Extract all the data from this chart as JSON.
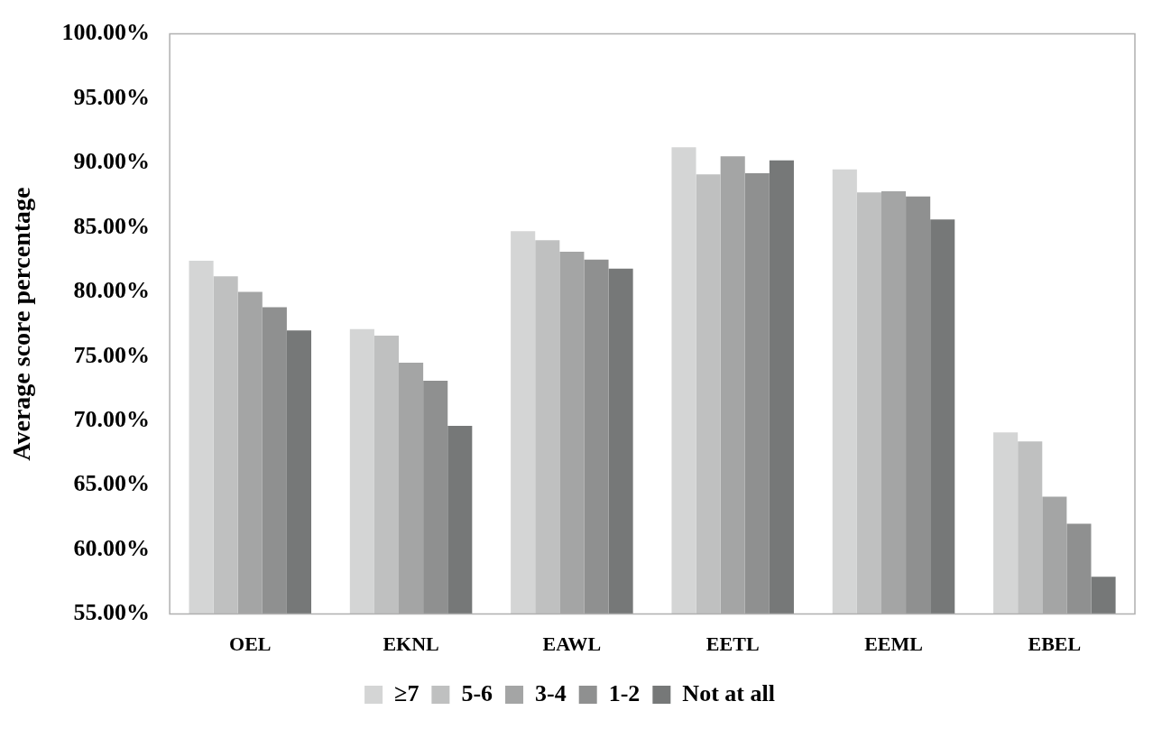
{
  "chart_data": {
    "type": "bar",
    "ylabel": "Average score percentage",
    "categories": [
      "OEL",
      "EKNL",
      "EAWL",
      "EETL",
      "EEML",
      "EBEL"
    ],
    "series": [
      {
        "name": "≥7",
        "color": "#d4d5d5",
        "values": [
          82.4,
          77.1,
          84.7,
          91.2,
          89.5,
          69.1
        ]
      },
      {
        "name": "5-6",
        "color": "#bfc0c0",
        "values": [
          81.2,
          76.6,
          84.0,
          89.1,
          87.7,
          68.4
        ]
      },
      {
        "name": "3-4",
        "color": "#a4a5a5",
        "values": [
          80.0,
          74.5,
          83.1,
          90.5,
          87.8,
          64.1
        ]
      },
      {
        "name": "1-2",
        "color": "#8f9090",
        "values": [
          78.8,
          73.1,
          82.5,
          89.2,
          87.4,
          62.0
        ]
      },
      {
        "name": "Not at all",
        "color": "#767878",
        "values": [
          77.0,
          69.6,
          81.8,
          90.2,
          85.6,
          57.9
        ]
      }
    ],
    "ylim": [
      55,
      100
    ],
    "yticks": [
      {
        "value": 55,
        "label": "55.00%"
      },
      {
        "value": 60,
        "label": "60.00%"
      },
      {
        "value": 65,
        "label": "65.00%"
      },
      {
        "value": 70,
        "label": "70.00%"
      },
      {
        "value": 75,
        "label": "75.00%"
      },
      {
        "value": 80,
        "label": "80.00%"
      },
      {
        "value": 85,
        "label": "85.00%"
      },
      {
        "value": 90,
        "label": "90.00%"
      },
      {
        "value": 95,
        "label": "95.00%"
      },
      {
        "value": 100,
        "label": "100.00%"
      }
    ],
    "legend": "bottom"
  }
}
